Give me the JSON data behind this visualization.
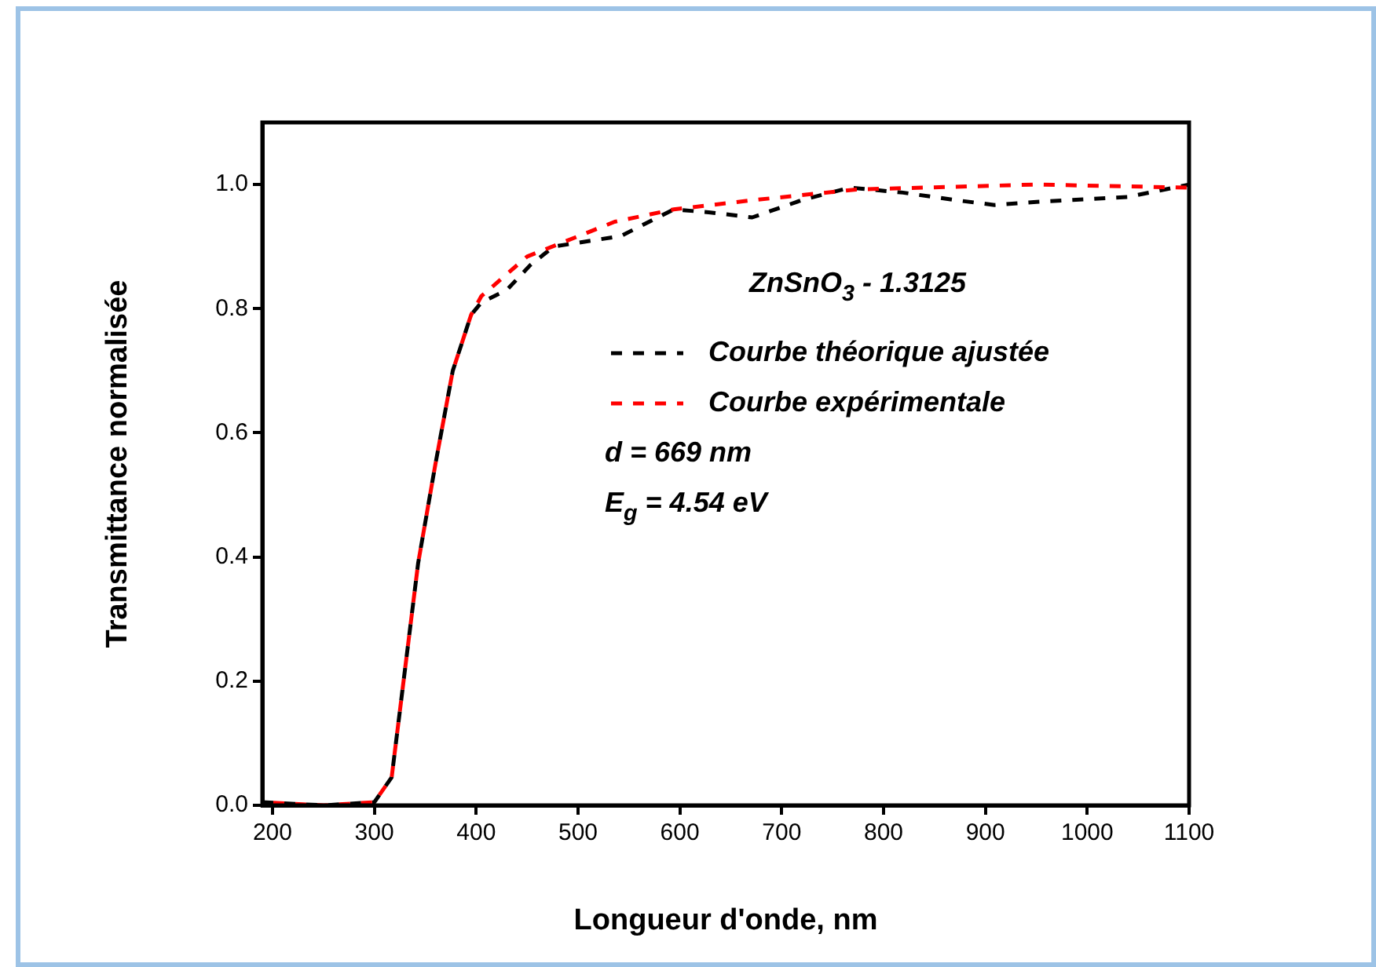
{
  "chart_data": {
    "type": "line",
    "xlabel": "Longueur d'onde, nm",
    "ylabel": "Transmittance normalisée",
    "xlim": [
      190,
      1100
    ],
    "ylim": [
      0,
      1.1
    ],
    "xticks": [
      200,
      300,
      400,
      500,
      600,
      700,
      800,
      900,
      1000,
      1100
    ],
    "yticks": [
      {
        "value": 0,
        "label": "0.0"
      },
      0.2,
      0.4,
      0.6,
      0.8,
      {
        "value": 1,
        "label": "1.0"
      }
    ],
    "grid": false,
    "legend": "top right",
    "line_style": "dashed",
    "marker": "none",
    "series": [
      {
        "name": "Courbe théorique ajustée",
        "color": "#000000",
        "x": [
          190,
          250,
          300,
          317,
          343,
          360,
          377,
          395,
          405,
          430,
          453,
          476,
          542,
          594,
          630,
          671,
          720,
          767,
          819,
          870,
          909,
          950,
          1040,
          1100
        ],
        "values": [
          0.005,
          0,
          0.005,
          0.045,
          0.39,
          0.55,
          0.7,
          0.79,
          0.81,
          0.83,
          0.87,
          0.9,
          0.917,
          0.96,
          0.955,
          0.947,
          0.975,
          0.995,
          0.987,
          0.975,
          0.967,
          0.972,
          0.98,
          1.0
        ]
      },
      {
        "name": "Courbe expérimentale",
        "color": "#ff0000",
        "x": [
          190,
          250,
          300,
          317,
          343,
          360,
          377,
          395,
          405,
          450,
          536,
          594,
          673,
          773,
          950,
          1100
        ],
        "values": [
          0.005,
          0,
          0.005,
          0.045,
          0.39,
          0.55,
          0.7,
          0.79,
          0.82,
          0.884,
          0.94,
          0.96,
          0.975,
          0.992,
          1.0,
          0.995
        ]
      }
    ],
    "annotations": [
      "ZnSnO$_{3}$ - 1.3125",
      "d = 669 nm",
      "E$_{g}$ = 4.54 eV"
    ]
  }
}
